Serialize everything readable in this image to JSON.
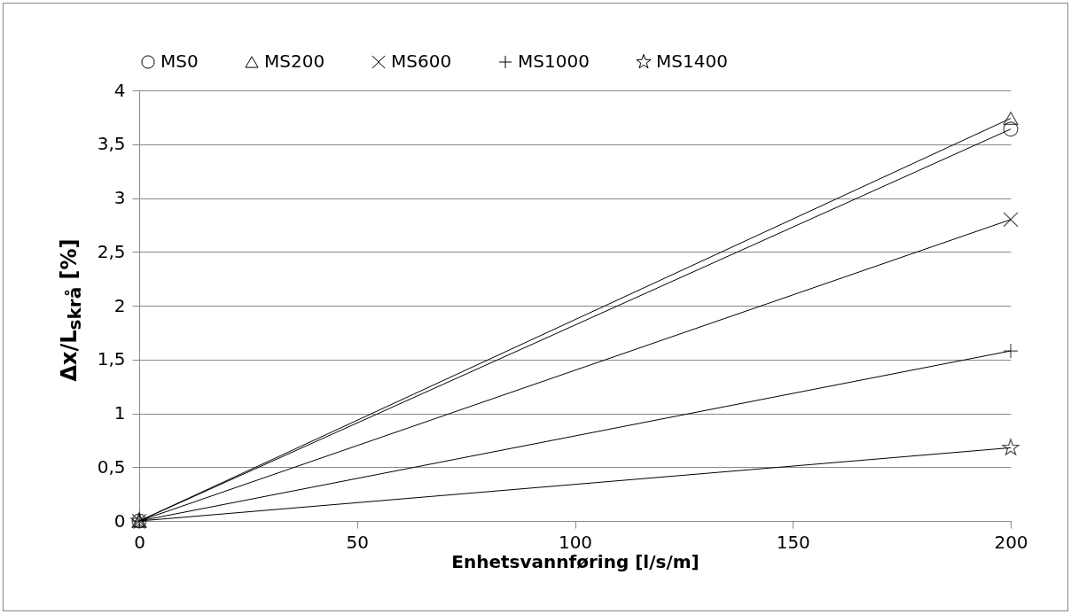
{
  "chart_data": {
    "type": "line",
    "xlabel": "Enhetsvannføring [l/s/m]",
    "ylabel": "Δx/L$_{skrå}$ [%]",
    "x": [
      0,
      200
    ],
    "series": [
      {
        "name": "MS0",
        "color": "#000000",
        "marker": "circle",
        "values": [
          0,
          3.64
        ]
      },
      {
        "name": "MS200",
        "color": "#000000",
        "marker": "triangle",
        "values": [
          0,
          3.74
        ]
      },
      {
        "name": "MS600",
        "color": "#000000",
        "marker": "cross",
        "values": [
          0,
          2.8
        ]
      },
      {
        "name": "MS1000",
        "color": "#000000",
        "marker": "plus",
        "values": [
          0,
          1.58
        ]
      },
      {
        "name": "MS1400",
        "color": "#000000",
        "marker": "star",
        "values": [
          0,
          0.68
        ]
      }
    ],
    "xlim": [
      0,
      200
    ],
    "xticks": [
      0,
      50,
      100,
      150,
      200
    ],
    "ylim": [
      0,
      4
    ],
    "yticks": [
      0,
      {
        "value": 0.5,
        "label": "0,5"
      },
      1,
      {
        "value": 1.5,
        "label": "1,5"
      },
      2,
      {
        "value": 2.5,
        "label": "2,5"
      },
      3,
      {
        "value": 3.5,
        "label": "3,5"
      },
      4
    ],
    "grid": "y",
    "legend": "top",
    "line_style": "solid"
  }
}
